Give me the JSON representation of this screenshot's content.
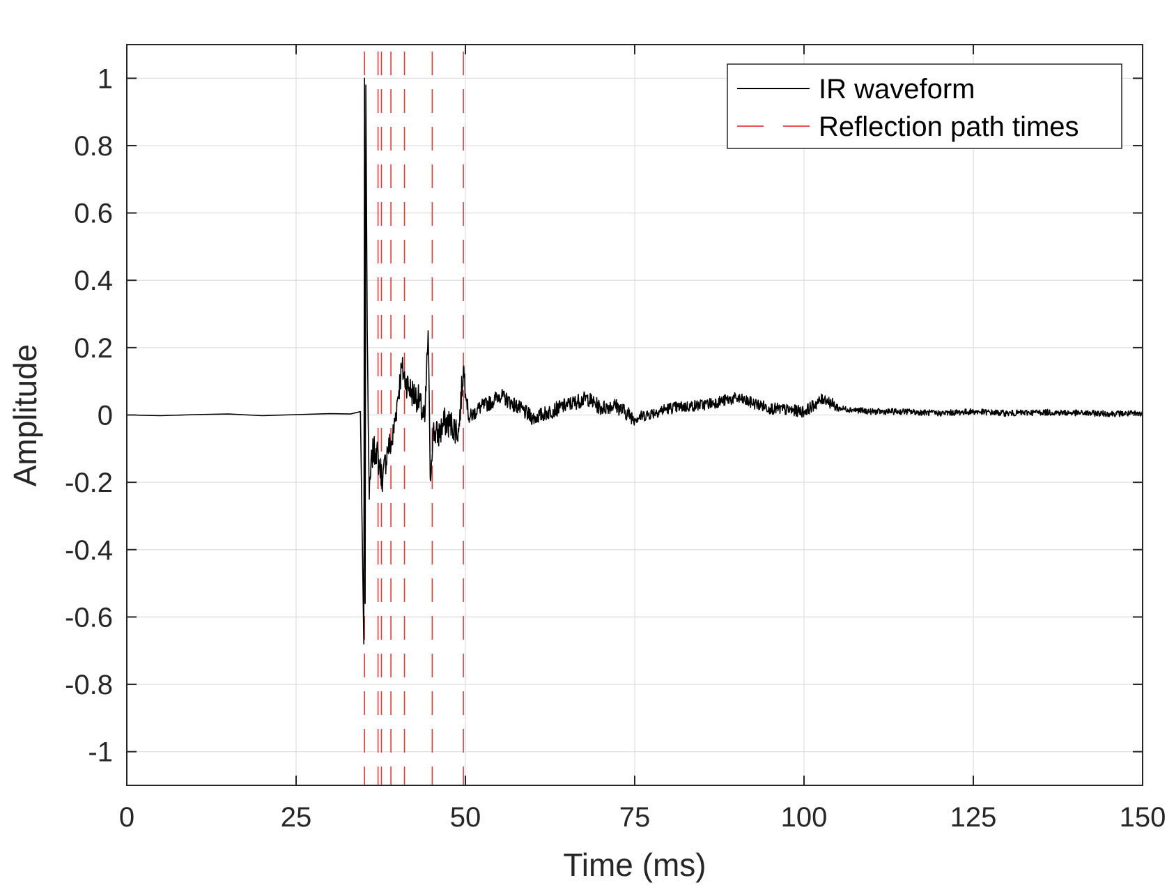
{
  "chart_data": {
    "type": "line",
    "title": "",
    "xlabel": "Time (ms)",
    "ylabel": "Amplitude",
    "xlim": [
      0,
      150
    ],
    "ylim": [
      -1.1,
      1.1
    ],
    "xticks": [
      0,
      25,
      50,
      75,
      100,
      125,
      150
    ],
    "xtick_labels": [
      "0",
      "25",
      "50",
      "75",
      "100",
      "125",
      "150"
    ],
    "yticks": [
      1,
      0.8,
      0.6,
      0.4,
      0.2,
      0,
      -0.2,
      -0.4,
      -0.6,
      -0.8,
      -1
    ],
    "ytick_labels": [
      "1",
      "0.8",
      "0.6",
      "0.4",
      "0.2",
      "0",
      "-0.2",
      "-0.4",
      "-0.6",
      "-0.8",
      "-1"
    ],
    "grid": true,
    "legend_position": "top-right",
    "series": [
      {
        "name": "IR waveform",
        "style": "solid",
        "color": "#000000",
        "x": [
          0,
          5,
          10,
          15,
          20,
          25,
          30,
          33,
          34.5,
          35,
          35.1,
          35.2,
          35.3,
          35.5,
          35.8,
          36.2,
          36.8,
          37.3,
          37.8,
          38.5,
          39.2,
          40,
          40.6,
          41.2,
          42,
          43,
          44,
          44.5,
          44.8,
          45.2,
          46,
          47,
          48,
          49,
          49.7,
          50.5,
          52,
          54,
          55,
          58,
          60,
          65,
          68,
          70,
          72,
          75,
          80,
          85,
          90,
          95,
          100,
          103,
          105,
          110,
          115,
          120,
          125,
          130,
          135,
          140,
          145,
          150
        ],
        "y": [
          0,
          -0.002,
          0.001,
          0.003,
          -0.002,
          0.001,
          0.004,
          0.003,
          0.01,
          -0.68,
          1.0,
          -0.56,
          0.98,
          0.25,
          -0.25,
          -0.12,
          -0.1,
          -0.15,
          -0.19,
          -0.1,
          -0.08,
          0.05,
          0.14,
          0.1,
          0.07,
          0.05,
          -0.02,
          0.25,
          -0.19,
          -0.05,
          -0.06,
          -0.02,
          -0.03,
          -0.05,
          0.14,
          -0.01,
          0.02,
          0.04,
          0.06,
          0.02,
          -0.01,
          0.03,
          0.05,
          0.02,
          0.03,
          -0.01,
          0.02,
          0.03,
          0.05,
          0.02,
          0.01,
          0.05,
          0.02,
          0.01,
          0.01,
          0.005,
          0.01,
          0.005,
          0.008,
          0.006,
          0.004,
          0.004
        ]
      },
      {
        "name": "Reflection path times",
        "style": "dashed",
        "color": "#e8393a",
        "x": [
          35.1,
          37.1,
          37.6,
          39.0,
          41.0,
          45.1,
          49.7
        ]
      }
    ]
  }
}
